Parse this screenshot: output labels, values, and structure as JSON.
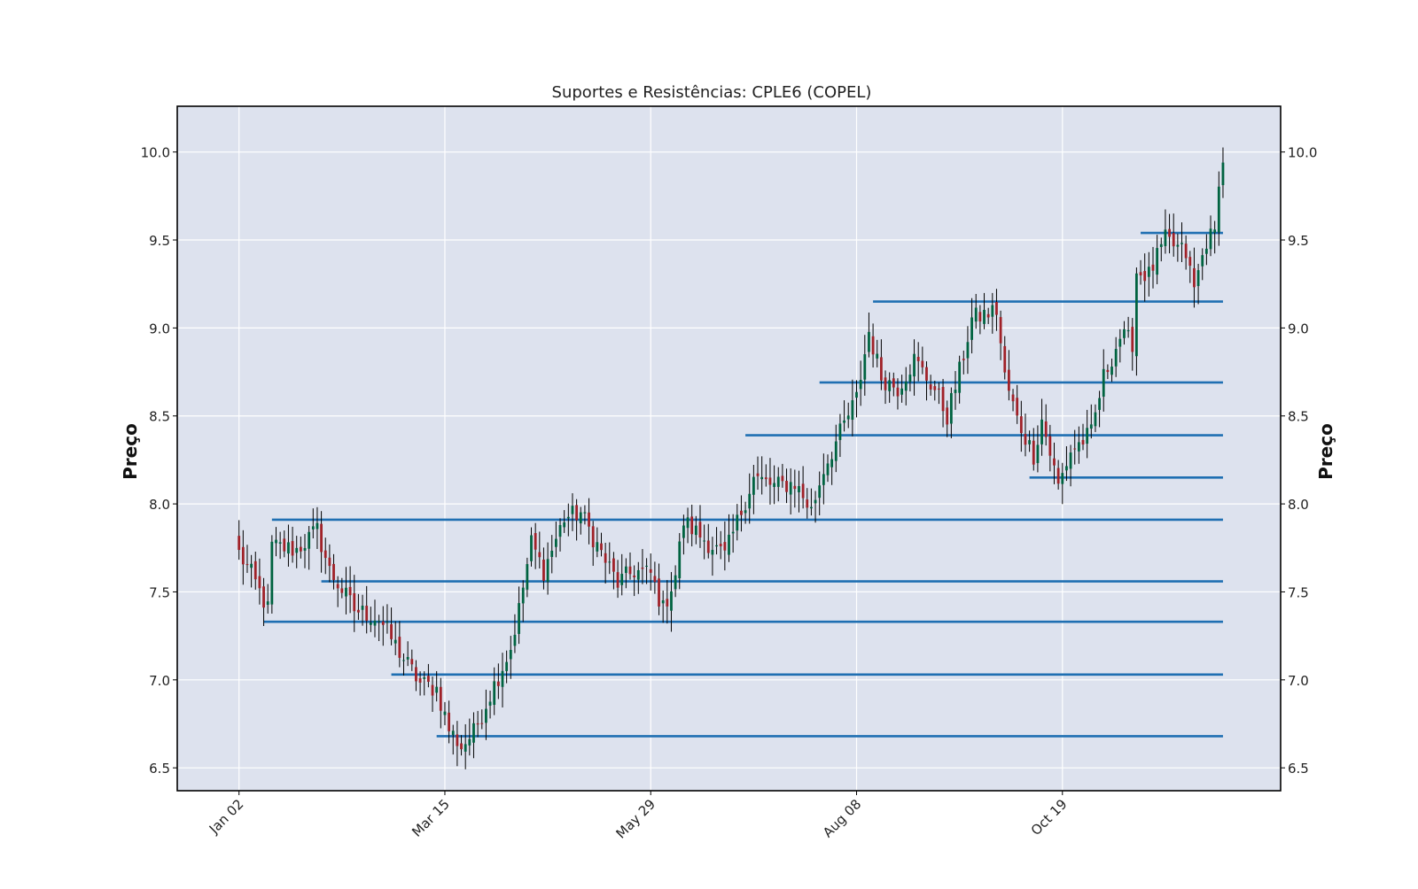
{
  "chart_data": {
    "type": "candlestick",
    "title": "Suportes e Resistências: CPLE6 (COPEL)",
    "ylabel": "Preço",
    "ylabel_right": "Preço",
    "ylim": [
      6.37,
      10.26
    ],
    "yticks": [
      6.5,
      7.0,
      7.5,
      8.0,
      8.5,
      9.0,
      9.5,
      10.0
    ],
    "ytick_labels": [
      "6.5",
      "7.0",
      "7.5",
      "8.0",
      "8.5",
      "9.0",
      "9.5",
      "10.0"
    ],
    "x_range": [
      -15,
      253
    ],
    "xticks": [
      {
        "index": 0,
        "label": "Jan 02"
      },
      {
        "index": 50,
        "label": "Mar 15"
      },
      {
        "index": 100,
        "label": "May 29"
      },
      {
        "index": 150,
        "label": "Aug 08"
      },
      {
        "index": 200,
        "label": "Oct 19"
      }
    ],
    "grid": true,
    "colors": {
      "background": "#dde2ee",
      "up": "#006340",
      "down": "#a02128",
      "wick": "#000000",
      "level_line": "#1f6fb2",
      "grid": "#ffffff"
    },
    "anchors": [
      [
        0,
        7.72
      ],
      [
        3,
        7.6
      ],
      [
        6,
        7.45
      ],
      [
        7,
        7.4
      ],
      [
        8,
        7.76
      ],
      [
        14,
        7.74
      ],
      [
        19,
        7.85
      ],
      [
        22,
        7.62
      ],
      [
        28,
        7.4
      ],
      [
        34,
        7.35
      ],
      [
        40,
        7.12
      ],
      [
        44,
        6.98
      ],
      [
        48,
        6.95
      ],
      [
        51,
        6.72
      ],
      [
        54,
        6.62
      ],
      [
        57,
        6.7
      ],
      [
        61,
        6.92
      ],
      [
        66,
        7.18
      ],
      [
        68,
        7.4
      ],
      [
        71,
        7.78
      ],
      [
        74,
        7.62
      ],
      [
        79,
        7.92
      ],
      [
        83,
        7.95
      ],
      [
        88,
        7.72
      ],
      [
        92,
        7.55
      ],
      [
        96,
        7.62
      ],
      [
        100,
        7.6
      ],
      [
        103,
        7.4
      ],
      [
        106,
        7.6
      ],
      [
        108,
        7.9
      ],
      [
        112,
        7.82
      ],
      [
        118,
        7.7
      ],
      [
        122,
        7.96
      ],
      [
        125,
        8.15
      ],
      [
        130,
        8.1
      ],
      [
        135,
        8.12
      ],
      [
        139,
        7.96
      ],
      [
        142,
        8.2
      ],
      [
        146,
        8.4
      ],
      [
        150,
        8.6
      ],
      [
        153,
        8.98
      ],
      [
        156,
        8.72
      ],
      [
        160,
        8.66
      ],
      [
        164,
        8.82
      ],
      [
        169,
        8.65
      ],
      [
        172,
        8.5
      ],
      [
        175,
        8.75
      ],
      [
        178,
        9.05
      ],
      [
        184,
        9.1
      ],
      [
        186,
        8.72
      ],
      [
        189,
        8.48
      ],
      [
        193,
        8.28
      ],
      [
        195,
        8.48
      ],
      [
        199,
        8.1
      ],
      [
        202,
        8.3
      ],
      [
        207,
        8.4
      ],
      [
        210,
        8.72
      ],
      [
        214,
        8.95
      ],
      [
        217,
        8.92
      ],
      [
        218,
        9.32
      ],
      [
        221,
        9.3
      ],
      [
        225,
        9.5
      ],
      [
        230,
        9.42
      ],
      [
        232,
        9.22
      ],
      [
        235,
        9.5
      ],
      [
        237,
        9.53
      ],
      [
        238,
        9.86
      ],
      [
        239,
        9.94
      ]
    ],
    "levels": [
      {
        "start": 6,
        "end": 239,
        "value": 7.33
      },
      {
        "start": 8,
        "end": 239,
        "value": 7.91
      },
      {
        "start": 20,
        "end": 239,
        "value": 7.56
      },
      {
        "start": 37,
        "end": 239,
        "value": 7.03
      },
      {
        "start": 48,
        "end": 239,
        "value": 6.68
      },
      {
        "start": 123,
        "end": 239,
        "value": 8.39
      },
      {
        "start": 141,
        "end": 239,
        "value": 8.69
      },
      {
        "start": 154,
        "end": 239,
        "value": 9.15
      },
      {
        "start": 192,
        "end": 239,
        "value": 8.15
      },
      {
        "start": 219,
        "end": 239,
        "value": 9.54
      }
    ]
  }
}
